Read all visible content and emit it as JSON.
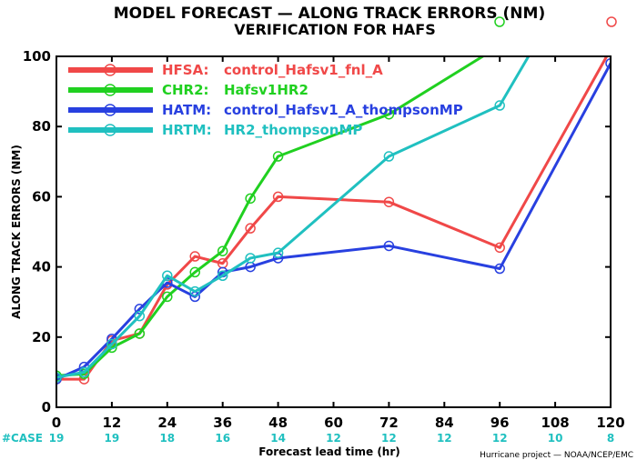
{
  "chart_data": {
    "type": "line",
    "title": "MODEL FORECAST — ALONG TRACK ERRORS (NM)",
    "subtitle": "VERIFICATION FOR HAFS",
    "xlabel": "Forecast lead time (hr)",
    "ylabel": "ALONG TRACK ERRORS (NM)",
    "xlim": [
      0,
      120
    ],
    "ylim": [
      0,
      100
    ],
    "xticks": [
      "0",
      "12",
      "24",
      "36",
      "48",
      "60",
      "72",
      "84",
      "96",
      "108",
      "120"
    ],
    "yticks": [
      "0",
      "20",
      "40",
      "60",
      "80",
      "100"
    ],
    "case_label": "#CASE",
    "cases": [
      {
        "x": 0,
        "n": "19"
      },
      {
        "x": 12,
        "n": "19"
      },
      {
        "x": 24,
        "n": "18"
      },
      {
        "x": 36,
        "n": "16"
      },
      {
        "x": 48,
        "n": "14"
      },
      {
        "x": 60,
        "n": "12"
      },
      {
        "x": 72,
        "n": "12"
      },
      {
        "x": 84,
        "n": "12"
      },
      {
        "x": 96,
        "n": "12"
      },
      {
        "x": 108,
        "n": "10"
      },
      {
        "x": 120,
        "n": "8"
      }
    ],
    "credit": "Hurricane project — NOAA/NCEP/EMC",
    "legend_position": "top-left",
    "series": [
      {
        "name": "HFSA:",
        "desc": "control_Hafsv1_fnl_A",
        "color": "#f04848",
        "x": [
          0,
          6,
          12,
          18,
          24,
          30,
          36,
          42,
          48,
          72,
          96,
          120
        ],
        "y": [
          8,
          8,
          19,
          21,
          35,
          43,
          41,
          51,
          60,
          58.5,
          45.5,
          102
        ]
      },
      {
        "name": "CHR2:",
        "desc": "Hafsv1HR2",
        "color": "#20d020",
        "x": [
          0,
          6,
          12,
          18,
          24,
          30,
          36,
          42,
          48,
          72,
          96,
          120
        ],
        "y": [
          9,
          9.5,
          17,
          21,
          31.5,
          38.5,
          44.5,
          59.5,
          71.5,
          83.5,
          103,
          106
        ]
      },
      {
        "name": "HATM:",
        "desc": "control_Hafsv1_A_thompsonMP",
        "color": "#2840e0",
        "x": [
          0,
          6,
          12,
          18,
          24,
          30,
          36,
          42,
          48,
          72,
          96,
          120
        ],
        "y": [
          8,
          11.5,
          19.5,
          28,
          35.5,
          31.5,
          38.5,
          40,
          42.5,
          46,
          39.5,
          98
        ]
      },
      {
        "name": "HRTM:",
        "desc": "HR2_thompsonMP",
        "color": "#20c0c0",
        "x": [
          0,
          6,
          12,
          18,
          24,
          30,
          36,
          42,
          48,
          72,
          96,
          120
        ],
        "y": [
          8.5,
          10,
          18,
          26,
          37.5,
          33,
          37.5,
          42.5,
          44,
          71.5,
          86,
          140
        ]
      }
    ]
  }
}
